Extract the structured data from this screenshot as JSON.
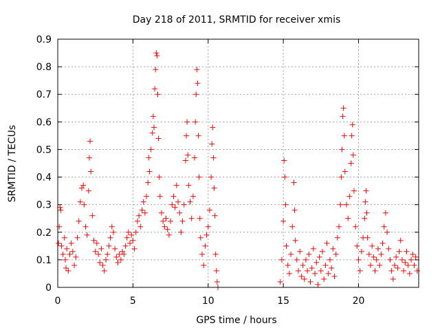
{
  "chart_data": {
    "type": "scatter",
    "title": "Day 218 of 2011, SRMTID for receiver xmis",
    "xlabel": "GPS time / hours",
    "ylabel": "SRMTID / TECUs",
    "xlim": [
      0,
      24
    ],
    "ylim": [
      0,
      0.9
    ],
    "xticks": [
      0,
      5,
      10,
      15,
      20
    ],
    "yticks": [
      0,
      0.1,
      0.2,
      0.3,
      0.4,
      0.5,
      0.6,
      0.7,
      0.8,
      0.9
    ],
    "xtick_labels": [
      "0",
      "5",
      "10",
      "15",
      "20"
    ],
    "ytick_labels": [
      "0",
      "0.1",
      "0.2",
      "0.3",
      "0.4",
      "0.5",
      "0.6",
      "0.7",
      "0.8",
      "0.9"
    ],
    "grid": true,
    "marker": "+",
    "marker_color": "#ff0000",
    "series": [
      {
        "name": "SRMTID",
        "points": [
          [
            0.05,
            0.16
          ],
          [
            0.1,
            0.22
          ],
          [
            0.15,
            0.29
          ],
          [
            0.2,
            0.28
          ],
          [
            0.25,
            0.15
          ],
          [
            0.35,
            0.12
          ],
          [
            0.45,
            0.18
          ],
          [
            0.5,
            0.1
          ],
          [
            0.55,
            0.07
          ],
          [
            0.6,
            0.14
          ],
          [
            0.7,
            0.06
          ],
          [
            0.8,
            0.12
          ],
          [
            0.9,
            0.16
          ],
          [
            1.0,
            0.13
          ],
          [
            1.1,
            0.08
          ],
          [
            1.2,
            0.11
          ],
          [
            1.3,
            0.18
          ],
          [
            1.4,
            0.24
          ],
          [
            1.5,
            0.31
          ],
          [
            1.6,
            0.36
          ],
          [
            1.7,
            0.37
          ],
          [
            1.75,
            0.3
          ],
          [
            1.85,
            0.22
          ],
          [
            1.95,
            0.19
          ],
          [
            2.05,
            0.35
          ],
          [
            2.1,
            0.47
          ],
          [
            2.15,
            0.53
          ],
          [
            2.2,
            0.42
          ],
          [
            2.3,
            0.26
          ],
          [
            2.4,
            0.17
          ],
          [
            2.5,
            0.13
          ],
          [
            2.6,
            0.16
          ],
          [
            2.7,
            0.12
          ],
          [
            2.8,
            0.09
          ],
          [
            2.9,
            0.14
          ],
          [
            3.0,
            0.08
          ],
          [
            3.1,
            0.06
          ],
          [
            3.2,
            0.1
          ],
          [
            3.3,
            0.12
          ],
          [
            3.4,
            0.15
          ],
          [
            3.5,
            0.18
          ],
          [
            3.6,
            0.22
          ],
          [
            3.7,
            0.2
          ],
          [
            3.8,
            0.14
          ],
          [
            3.9,
            0.11
          ],
          [
            4.0,
            0.09
          ],
          [
            4.1,
            0.12
          ],
          [
            4.2,
            0.1
          ],
          [
            4.3,
            0.13
          ],
          [
            4.4,
            0.12
          ],
          [
            4.5,
            0.15
          ],
          [
            4.6,
            0.18
          ],
          [
            4.7,
            0.2
          ],
          [
            4.8,
            0.16
          ],
          [
            4.9,
            0.19
          ],
          [
            5.0,
            0.17
          ],
          [
            5.1,
            0.14
          ],
          [
            5.2,
            0.2
          ],
          [
            5.3,
            0.24
          ],
          [
            5.4,
            0.26
          ],
          [
            5.5,
            0.22
          ],
          [
            5.6,
            0.28
          ],
          [
            5.7,
            0.31
          ],
          [
            5.8,
            0.27
          ],
          [
            5.9,
            0.33
          ],
          [
            6.0,
            0.38
          ],
          [
            6.05,
            0.47
          ],
          [
            6.1,
            0.42
          ],
          [
            6.2,
            0.5
          ],
          [
            6.3,
            0.56
          ],
          [
            6.35,
            0.62
          ],
          [
            6.4,
            0.58
          ],
          [
            6.45,
            0.72
          ],
          [
            6.5,
            0.79
          ],
          [
            6.55,
            0.85
          ],
          [
            6.6,
            0.84
          ],
          [
            6.65,
            0.7
          ],
          [
            6.7,
            0.54
          ],
          [
            6.75,
            0.4
          ],
          [
            6.8,
            0.33
          ],
          [
            6.9,
            0.27
          ],
          [
            7.0,
            0.24
          ],
          [
            7.1,
            0.22
          ],
          [
            7.2,
            0.25
          ],
          [
            7.3,
            0.21
          ],
          [
            7.4,
            0.19
          ],
          [
            7.5,
            0.24
          ],
          [
            7.6,
            0.3
          ],
          [
            7.7,
            0.33
          ],
          [
            7.8,
            0.29
          ],
          [
            7.9,
            0.37
          ],
          [
            8.0,
            0.31
          ],
          [
            8.1,
            0.27
          ],
          [
            8.2,
            0.2
          ],
          [
            8.3,
            0.24
          ],
          [
            8.4,
            0.3
          ],
          [
            8.5,
            0.46
          ],
          [
            8.55,
            0.55
          ],
          [
            8.6,
            0.6
          ],
          [
            8.65,
            0.48
          ],
          [
            8.7,
            0.37
          ],
          [
            8.8,
            0.31
          ],
          [
            8.9,
            0.25
          ],
          [
            9.0,
            0.33
          ],
          [
            9.1,
            0.47
          ],
          [
            9.15,
            0.6
          ],
          [
            9.2,
            0.7
          ],
          [
            9.25,
            0.79
          ],
          [
            9.3,
            0.74
          ],
          [
            9.35,
            0.55
          ],
          [
            9.4,
            0.4
          ],
          [
            9.45,
            0.25
          ],
          [
            9.5,
            0.18
          ],
          [
            9.6,
            0.12
          ],
          [
            9.7,
            0.08
          ],
          [
            9.8,
            0.15
          ],
          [
            9.9,
            0.19
          ],
          [
            10.0,
            0.22
          ],
          [
            10.1,
            0.28
          ],
          [
            10.2,
            0.4
          ],
          [
            10.25,
            0.52
          ],
          [
            10.3,
            0.58
          ],
          [
            10.35,
            0.47
          ],
          [
            10.4,
            0.36
          ],
          [
            10.45,
            0.26
          ],
          [
            10.5,
            0.12
          ],
          [
            10.55,
            0.06
          ],
          [
            10.6,
            0.02
          ],
          [
            10.65,
            0.0
          ],
          [
            14.8,
            0.02
          ],
          [
            14.9,
            0.1
          ],
          [
            15.0,
            0.24
          ],
          [
            15.05,
            0.46
          ],
          [
            15.1,
            0.4
          ],
          [
            15.15,
            0.3
          ],
          [
            15.2,
            0.15
          ],
          [
            15.3,
            0.08
          ],
          [
            15.4,
            0.05
          ],
          [
            15.5,
            0.12
          ],
          [
            15.6,
            0.22
          ],
          [
            15.7,
            0.38
          ],
          [
            15.75,
            0.28
          ],
          [
            15.8,
            0.17
          ],
          [
            15.9,
            0.1
          ],
          [
            16.0,
            0.06
          ],
          [
            16.1,
            0.13
          ],
          [
            16.2,
            0.04
          ],
          [
            16.3,
            0.08
          ],
          [
            16.4,
            0.03
          ],
          [
            16.5,
            0.1
          ],
          [
            16.6,
            0.06
          ],
          [
            16.7,
            0.12
          ],
          [
            16.8,
            0.02
          ],
          [
            16.9,
            0.07
          ],
          [
            17.0,
            0.14
          ],
          [
            17.1,
            0.05
          ],
          [
            17.2,
            0.09
          ],
          [
            17.3,
            0.01
          ],
          [
            17.4,
            0.11
          ],
          [
            17.5,
            0.06
          ],
          [
            17.6,
            0.13
          ],
          [
            17.7,
            0.03
          ],
          [
            17.8,
            0.08
          ],
          [
            17.9,
            0.16
          ],
          [
            18.0,
            0.05
          ],
          [
            18.1,
            0.1
          ],
          [
            18.2,
            0.07
          ],
          [
            18.3,
            0.14
          ],
          [
            18.4,
            0.04
          ],
          [
            18.5,
            0.12
          ],
          [
            18.6,
            0.18
          ],
          [
            18.7,
            0.22
          ],
          [
            18.8,
            0.3
          ],
          [
            18.85,
            0.4
          ],
          [
            18.9,
            0.5
          ],
          [
            18.95,
            0.62
          ],
          [
            19.0,
            0.65
          ],
          [
            19.05,
            0.55
          ],
          [
            19.1,
            0.42
          ],
          [
            19.2,
            0.3
          ],
          [
            19.3,
            0.25
          ],
          [
            19.4,
            0.33
          ],
          [
            19.5,
            0.45
          ],
          [
            19.55,
            0.55
          ],
          [
            19.6,
            0.59
          ],
          [
            19.65,
            0.48
          ],
          [
            19.7,
            0.35
          ],
          [
            19.8,
            0.22
          ],
          [
            19.9,
            0.15
          ],
          [
            20.0,
            0.1
          ],
          [
            20.1,
            0.06
          ],
          [
            20.2,
            0.13
          ],
          [
            20.3,
            0.18
          ],
          [
            20.4,
            0.25
          ],
          [
            20.45,
            0.31
          ],
          [
            20.5,
            0.35
          ],
          [
            20.55,
            0.27
          ],
          [
            20.6,
            0.18
          ],
          [
            20.7,
            0.12
          ],
          [
            20.8,
            0.08
          ],
          [
            20.9,
            0.15
          ],
          [
            21.0,
            0.11
          ],
          [
            21.1,
            0.06
          ],
          [
            21.2,
            0.1
          ],
          [
            21.3,
            0.14
          ],
          [
            21.4,
            0.08
          ],
          [
            21.5,
            0.12
          ],
          [
            21.6,
            0.16
          ],
          [
            21.7,
            0.22
          ],
          [
            21.8,
            0.27
          ],
          [
            21.9,
            0.2
          ],
          [
            22.0,
            0.14
          ],
          [
            22.1,
            0.1
          ],
          [
            22.2,
            0.06
          ],
          [
            22.3,
            0.03
          ],
          [
            22.4,
            0.08
          ],
          [
            22.5,
            0.11
          ],
          [
            22.6,
            0.07
          ],
          [
            22.7,
            0.13
          ],
          [
            22.8,
            0.17
          ],
          [
            22.9,
            0.1
          ],
          [
            23.0,
            0.06
          ],
          [
            23.1,
            0.09
          ],
          [
            23.2,
            0.13
          ],
          [
            23.3,
            0.08
          ],
          [
            23.4,
            0.05
          ],
          [
            23.5,
            0.1
          ],
          [
            23.6,
            0.12
          ],
          [
            23.7,
            0.08
          ],
          [
            23.8,
            0.11
          ],
          [
            23.9,
            0.06
          ]
        ]
      }
    ]
  }
}
